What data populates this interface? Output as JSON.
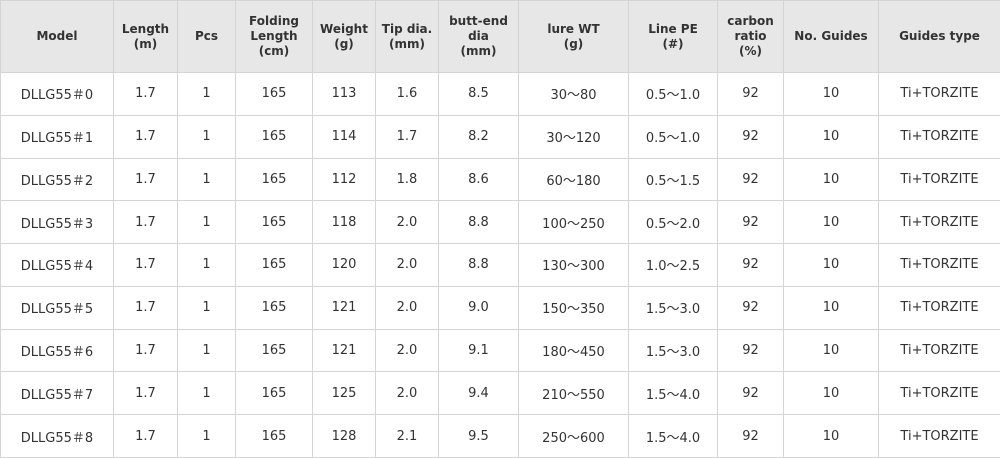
{
  "columns": [
    "Model",
    "Length\n(m)",
    "Pcs",
    "Folding\nLength\n(cm)",
    "Weight\n(g)",
    "Tip dia.\n(mm)",
    "butt-end\ndia\n(mm)",
    "lure WT\n(g)",
    "Line PE\n(#)",
    "carbon\nratio\n(%)",
    "No. Guides",
    "Guides type"
  ],
  "rows": [
    [
      "DLLG55＃0",
      "1.7",
      "1",
      "165",
      "113",
      "1.6",
      "8.5",
      "30～80",
      "0.5～1.0",
      "92",
      "10",
      "Ti+TORZITE"
    ],
    [
      "DLLG55＃1",
      "1.7",
      "1",
      "165",
      "114",
      "1.7",
      "8.2",
      "30～120",
      "0.5～1.0",
      "92",
      "10",
      "Ti+TORZITE"
    ],
    [
      "DLLG55＃2",
      "1.7",
      "1",
      "165",
      "112",
      "1.8",
      "8.6",
      "60～180",
      "0.5～1.5",
      "92",
      "10",
      "Ti+TORZITE"
    ],
    [
      "DLLG55＃3",
      "1.7",
      "1",
      "165",
      "118",
      "2.0",
      "8.8",
      "100～250",
      "0.5～2.0",
      "92",
      "10",
      "Ti+TORZITE"
    ],
    [
      "DLLG55＃4",
      "1.7",
      "1",
      "165",
      "120",
      "2.0",
      "8.8",
      "130～300",
      "1.0～2.5",
      "92",
      "10",
      "Ti+TORZITE"
    ],
    [
      "DLLG55＃5",
      "1.7",
      "1",
      "165",
      "121",
      "2.0",
      "9.0",
      "150～350",
      "1.5～3.0",
      "92",
      "10",
      "Ti+TORZITE"
    ],
    [
      "DLLG55＃6",
      "1.7",
      "1",
      "165",
      "121",
      "2.0",
      "9.1",
      "180～450",
      "1.5～3.0",
      "92",
      "10",
      "Ti+TORZITE"
    ],
    [
      "DLLG55＃7",
      "1.7",
      "1",
      "165",
      "125",
      "2.0",
      "9.4",
      "210～550",
      "1.5～4.0",
      "92",
      "10",
      "Ti+TORZITE"
    ],
    [
      "DLLG55＃8",
      "1.7",
      "1",
      "165",
      "128",
      "2.1",
      "9.5",
      "250～600",
      "1.5～4.0",
      "92",
      "10",
      "Ti+TORZITE"
    ]
  ],
  "colors": {
    "header_bg": "#e7e7e7",
    "border": "#d4d4d4",
    "text": "#333333"
  }
}
